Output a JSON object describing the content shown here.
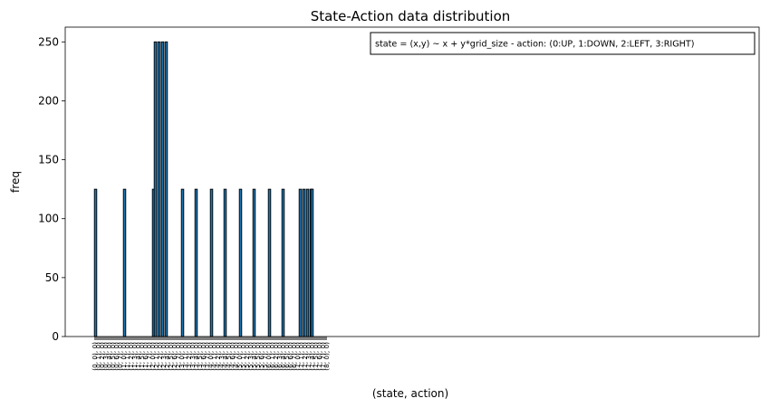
{
  "chart_data": {
    "type": "bar",
    "title": "State-Action data distribution",
    "xlabel": "(state, action)",
    "ylabel": "freq",
    "ylim": [
      0,
      262.5
    ],
    "yticks": [
      0,
      50,
      100,
      150,
      200,
      250
    ],
    "grid": false,
    "legend_text": "state = (x,y) ~ x + y*grid_size  -  action: (0:UP, 1:DOWN, 2:LEFT, 3:RIGHT)",
    "legend_position": "top-right",
    "bar_color": "#1f77b4",
    "edge_color": "#000000",
    "tick_labels": [
      "(0, 0), 0)",
      "(0, 1), 0)",
      "(0, 2), 0)",
      "(0, 3), 0)",
      "(0, 4), 0)",
      "(0, 5), 0)",
      "(0, 6), 0)",
      "(0, 7), 0)",
      "(1, 0), 0)",
      "(1, 1), 0)",
      "(1, 2), 0)",
      "(1, 3), 0)",
      "(1, 4), 0)",
      "(1, 5), 0)",
      "(1, 6), 0)",
      "(1, 7), 0)",
      "(2, 0), 0)",
      "(2, 1), 0)",
      "(2, 2), 0)",
      "(2, 3), 0)",
      "(2, 4), 0)",
      "(2, 5), 0)",
      "(2, 6), 0)",
      "(2, 7), 0)",
      "(3, 0), 0)",
      "(3, 1), 0)",
      "(3, 2), 0)",
      "(3, 3), 0)",
      "(3, 4), 0)",
      "(3, 5), 0)",
      "(3, 6), 0)",
      "(3, 7), 0)",
      "(4, 0), 0)",
      "(4, 1), 0)",
      "(4, 2), 0)",
      "(4, 3), 0)",
      "(4, 4), 0)",
      "(4, 5), 0)",
      "(4, 6), 0)",
      "(4, 7), 0)",
      "(5, 0), 0)",
      "(5, 1), 0)",
      "(5, 2), 0)",
      "(5, 3), 0)",
      "(5, 4), 0)",
      "(5, 5), 0)",
      "(5, 6), 0)",
      "(5, 7), 0)",
      "(6, 0), 0)",
      "(6, 1), 0)",
      "(6, 2), 0)",
      "(6, 3), 0)",
      "(6, 4), 0)",
      "(6, 5), 0)",
      "(6, 6), 0)",
      "(6, 7), 0)",
      "(7, 0), 0)",
      "(7, 1), 0)",
      "(7, 2), 0)",
      "(7, 3), 0)",
      "(7, 4), 0)",
      "(7, 5), 0)",
      "(7, 6), 0)",
      "(7, 7), 0)",
      "(8, 0), 0)"
    ],
    "num_categories": 257,
    "nonzero_bars": [
      {
        "index": 1,
        "value": 125
      },
      {
        "index": 33,
        "value": 125
      },
      {
        "index": 65,
        "value": 125
      },
      {
        "index": 67,
        "value": 250
      },
      {
        "index": 71,
        "value": 250
      },
      {
        "index": 75,
        "value": 250
      },
      {
        "index": 79,
        "value": 250
      },
      {
        "index": 97,
        "value": 125
      },
      {
        "index": 112,
        "value": 125
      },
      {
        "index": 129,
        "value": 125
      },
      {
        "index": 144,
        "value": 125
      },
      {
        "index": 161,
        "value": 125
      },
      {
        "index": 176,
        "value": 125
      },
      {
        "index": 193,
        "value": 125
      },
      {
        "index": 208,
        "value": 125
      },
      {
        "index": 227,
        "value": 125
      },
      {
        "index": 231,
        "value": 125
      },
      {
        "index": 235,
        "value": 125
      },
      {
        "index": 239,
        "value": 125
      },
      {
        "index": 240,
        "value": 125
      }
    ]
  }
}
